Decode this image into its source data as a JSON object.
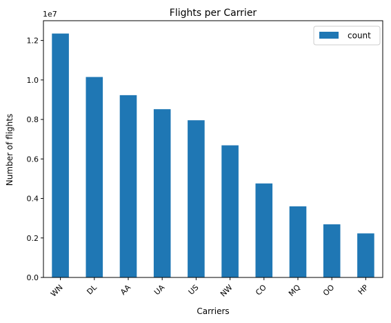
{
  "chart_data": {
    "type": "bar",
    "title": "Flights per Carrier",
    "xlabel": "Carriers",
    "ylabel": "Number of flights",
    "y_scale_label": "1e7",
    "categories": [
      "WN",
      "DL",
      "AA",
      "UA",
      "US",
      "NW",
      "CO",
      "MQ",
      "OO",
      "HP"
    ],
    "series": [
      {
        "name": "count",
        "color": "#1f77b4",
        "values": [
          12350000,
          10150000,
          9230000,
          8520000,
          7960000,
          6690000,
          4760000,
          3600000,
          2690000,
          2230000
        ]
      }
    ],
    "ylim": [
      0,
      13000000
    ],
    "yticks": [
      0,
      2000000,
      4000000,
      6000000,
      8000000,
      10000000,
      12000000
    ],
    "ytick_labels": [
      "0.0",
      "0.2",
      "0.4",
      "0.6",
      "0.8",
      "1.0",
      "1.2"
    ],
    "xtick_rotation": 45,
    "grid": false,
    "legend_position": "upper right"
  }
}
